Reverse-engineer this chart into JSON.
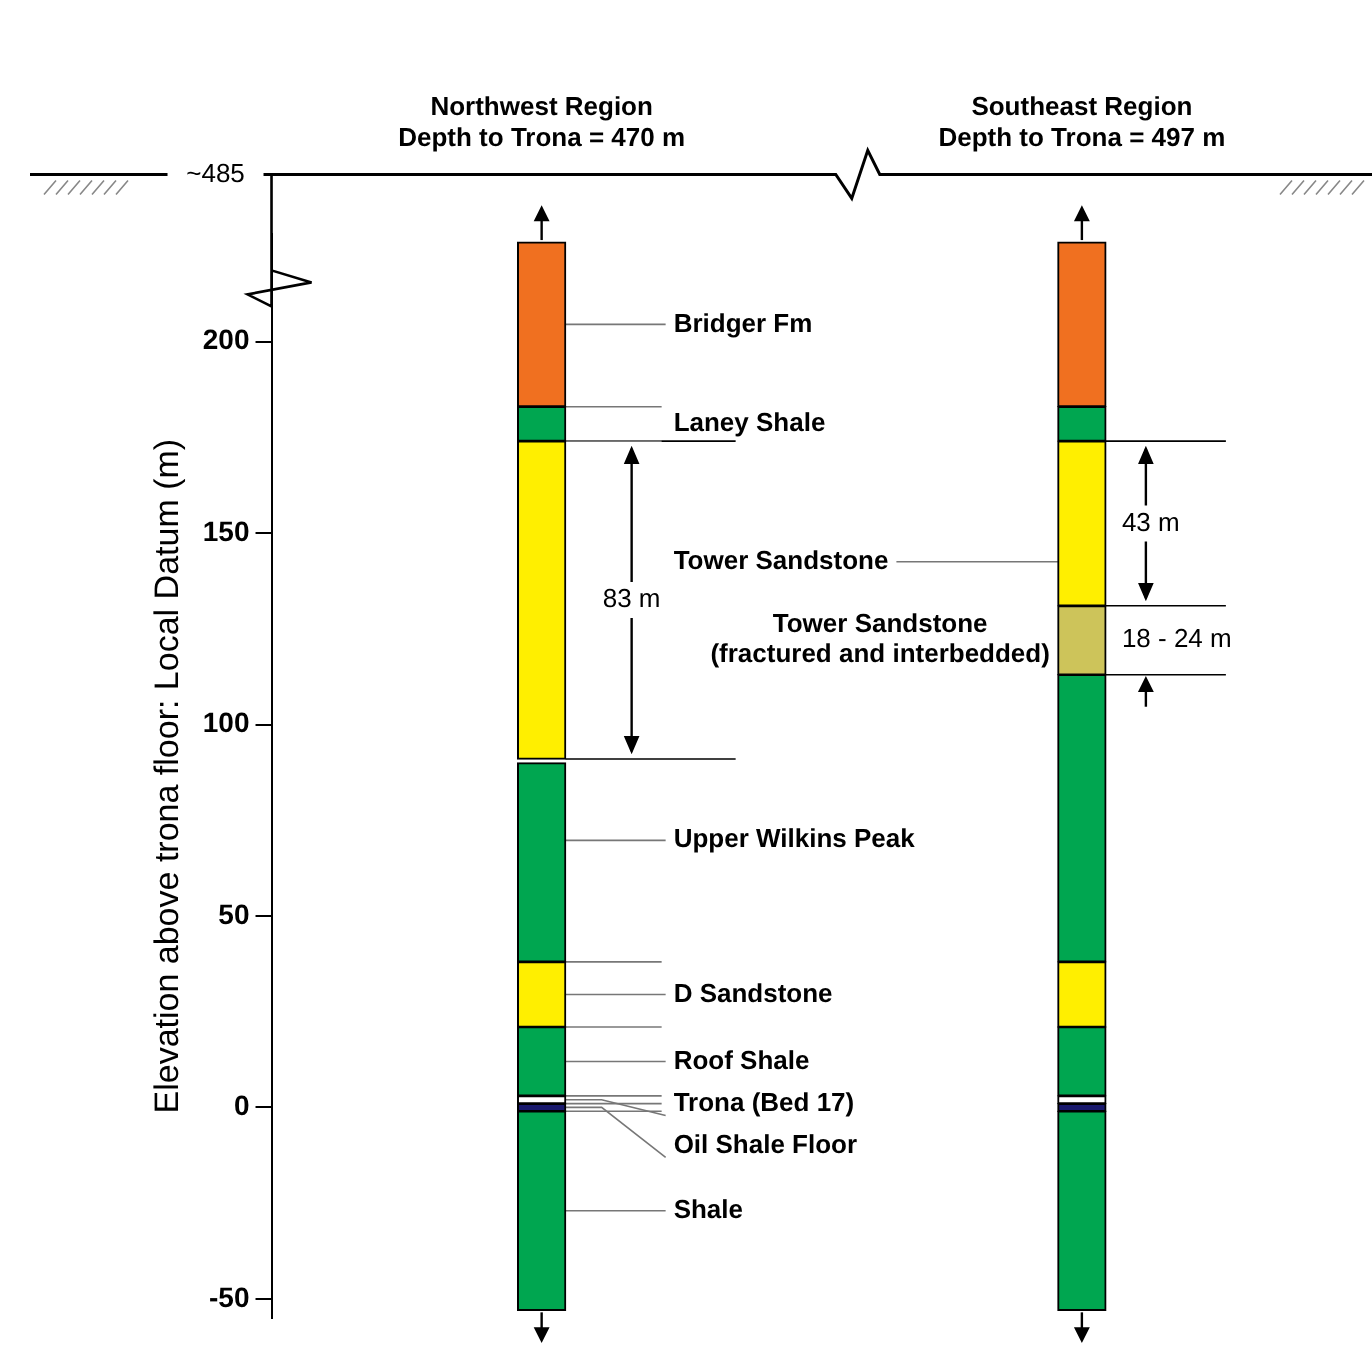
{
  "chart_data": {
    "type": "bar",
    "ylabel": "Elevation above trona floor: Local Datum (m)",
    "categories": [
      "Northwest Region\nDepth to Trona = 470 m",
      "Southeast Region\nDepth to Trona = 497 m"
    ],
    "series": [
      {
        "name": "Shale",
        "color": "#00a650",
        "base": [
          -53,
          -53
        ],
        "values": [
          52,
          52
        ]
      },
      {
        "name": "Oil Shale Floor",
        "color": "#1a1a6e",
        "base": [
          -1,
          -1
        ],
        "values": [
          2,
          2
        ]
      },
      {
        "name": "Trona (Bed 17)",
        "color": "#ffffff",
        "base": [
          1,
          1
        ],
        "values": [
          2,
          2
        ]
      },
      {
        "name": "Roof Shale",
        "color": "#00a650",
        "base": [
          3,
          3
        ],
        "values": [
          18,
          18
        ]
      },
      {
        "name": "D Sandstone",
        "color": "#ffef00",
        "base": [
          21,
          21
        ],
        "values": [
          17,
          17
        ]
      },
      {
        "name": "Upper Wilkins Peak",
        "color": "#00a650",
        "base": [
          38,
          38
        ],
        "values": [
          52,
          75
        ]
      },
      {
        "name": "Tower Sandstone\n(fractured and interbedded)",
        "color": "#cdc45a",
        "base": [
          null,
          113
        ],
        "values": [
          null,
          18
        ]
      },
      {
        "name": "Tower Sandstone",
        "color": "#ffef00",
        "base": [
          91,
          131
        ],
        "values": [
          83,
          43
        ]
      },
      {
        "name": "Laney Shale",
        "color": "#00a650",
        "base": [
          174,
          174
        ],
        "values": [
          9,
          9
        ]
      },
      {
        "name": "Bridger Fm",
        "color": "#f07020",
        "base": [
          183,
          183
        ],
        "values": [
          43,
          43
        ]
      }
    ],
    "ylim": [
      -55,
      228
    ],
    "yticks": [
      -50,
      0,
      50,
      100,
      150,
      200
    ],
    "grid": false,
    "legend": false,
    "annotations": [
      "~485",
      "83 m",
      "43 m",
      "18 - 24 m"
    ]
  }
}
